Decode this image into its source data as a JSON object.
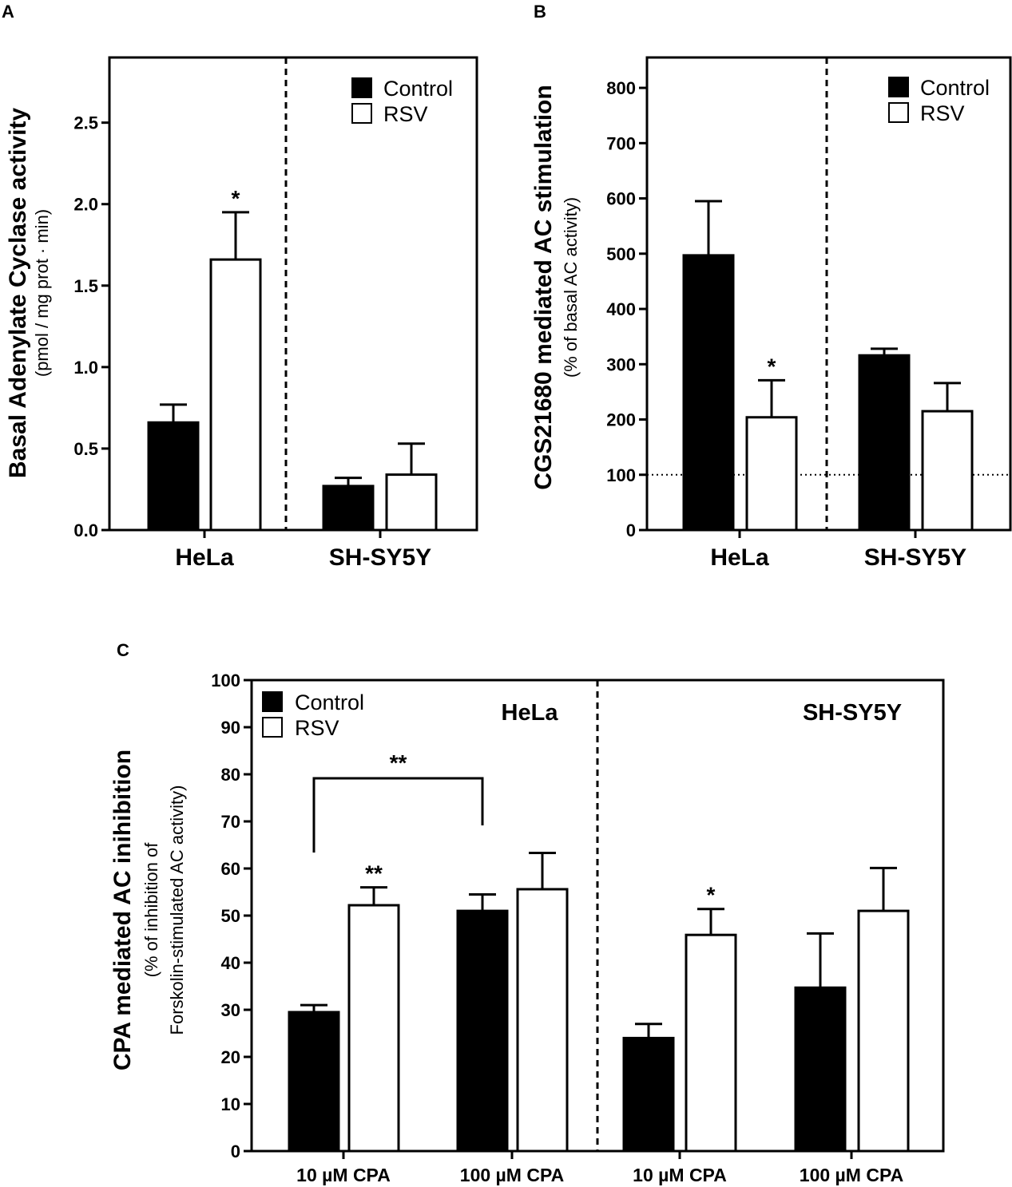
{
  "chart_data": [
    {
      "panel": "A",
      "type": "bar",
      "categories": [
        "HeLa",
        "SH-SY5Y"
      ],
      "series": [
        {
          "name": "Control",
          "fill": "#000000",
          "values": [
            0.66,
            0.27
          ],
          "errors": [
            0.11,
            0.05
          ]
        },
        {
          "name": "RSV",
          "fill": "#ffffff",
          "values": [
            1.66,
            0.34
          ],
          "errors": [
            0.29,
            0.19
          ]
        }
      ],
      "significance": [
        {
          "category": 0,
          "series": 1,
          "label": "*"
        }
      ],
      "ylabel": "Basal Adenylate Cyclase activity",
      "ylabel_sub": "(pmol / mg prot · min)",
      "ylim": [
        0,
        2.9
      ],
      "yticks": [
        0.0,
        0.5,
        1.0,
        1.5,
        2.0,
        2.5
      ],
      "ytick_labels": [
        "0.0",
        "0.5",
        "1.0",
        "1.5",
        "2.0",
        "2.5"
      ],
      "legend": [
        "Control",
        "RSV"
      ]
    },
    {
      "panel": "B",
      "type": "bar",
      "categories": [
        "HeLa",
        "SH-SY5Y"
      ],
      "series": [
        {
          "name": "Control",
          "fill": "#000000",
          "values": [
            497,
            316
          ],
          "errors": [
            98,
            12
          ]
        },
        {
          "name": "RSV",
          "fill": "#ffffff",
          "values": [
            204,
            215
          ],
          "errors": [
            67,
            51
          ]
        }
      ],
      "significance": [
        {
          "category": 0,
          "series": 1,
          "label": "*"
        }
      ],
      "reference_line": 100,
      "ylabel": "CGS21680 mediated AC stimulation",
      "ylabel_sub": "(% of basal AC activity)",
      "ylim": [
        0,
        855
      ],
      "yticks": [
        0,
        100,
        200,
        300,
        400,
        500,
        600,
        700,
        800
      ],
      "ytick_labels": [
        "0",
        "100",
        "200",
        "300",
        "400",
        "500",
        "600",
        "700",
        "800"
      ],
      "legend": [
        "Control",
        "RSV"
      ]
    },
    {
      "panel": "C",
      "type": "bar",
      "categories": [
        "10 µM CPA",
        "100 µM CPA",
        "10 µM CPA",
        "100 µM CPA"
      ],
      "groups": [
        "HeLa",
        "SH-SY5Y"
      ],
      "series": [
        {
          "name": "Control",
          "fill": "#000000",
          "values": [
            29.5,
            51.0,
            24.0,
            34.7
          ],
          "errors": [
            1.5,
            3.5,
            3.0,
            11.5
          ]
        },
        {
          "name": "RSV",
          "fill": "#ffffff",
          "values": [
            52.2,
            55.6,
            45.9,
            51.0
          ],
          "errors": [
            3.8,
            7.7,
            5.5,
            9.1
          ]
        }
      ],
      "significance": [
        {
          "category": 0,
          "series": 1,
          "label": "**"
        },
        {
          "category": 2,
          "series": 1,
          "label": "*"
        }
      ],
      "bracket": {
        "from": 0,
        "to": 1,
        "label": "**"
      },
      "ylabel": "CPA mediated AC inihibition",
      "ylabel_sub1": "(% of inhibition of",
      "ylabel_sub2": "Forskolin-stimulated AC activity)",
      "ylim": [
        0,
        100
      ],
      "yticks": [
        0,
        10,
        20,
        30,
        40,
        50,
        60,
        70,
        80,
        90,
        100
      ],
      "ytick_labels": [
        "0",
        "10",
        "20",
        "30",
        "40",
        "50",
        "60",
        "70",
        "80",
        "90",
        "100"
      ],
      "legend": [
        "Control",
        "RSV"
      ]
    }
  ]
}
